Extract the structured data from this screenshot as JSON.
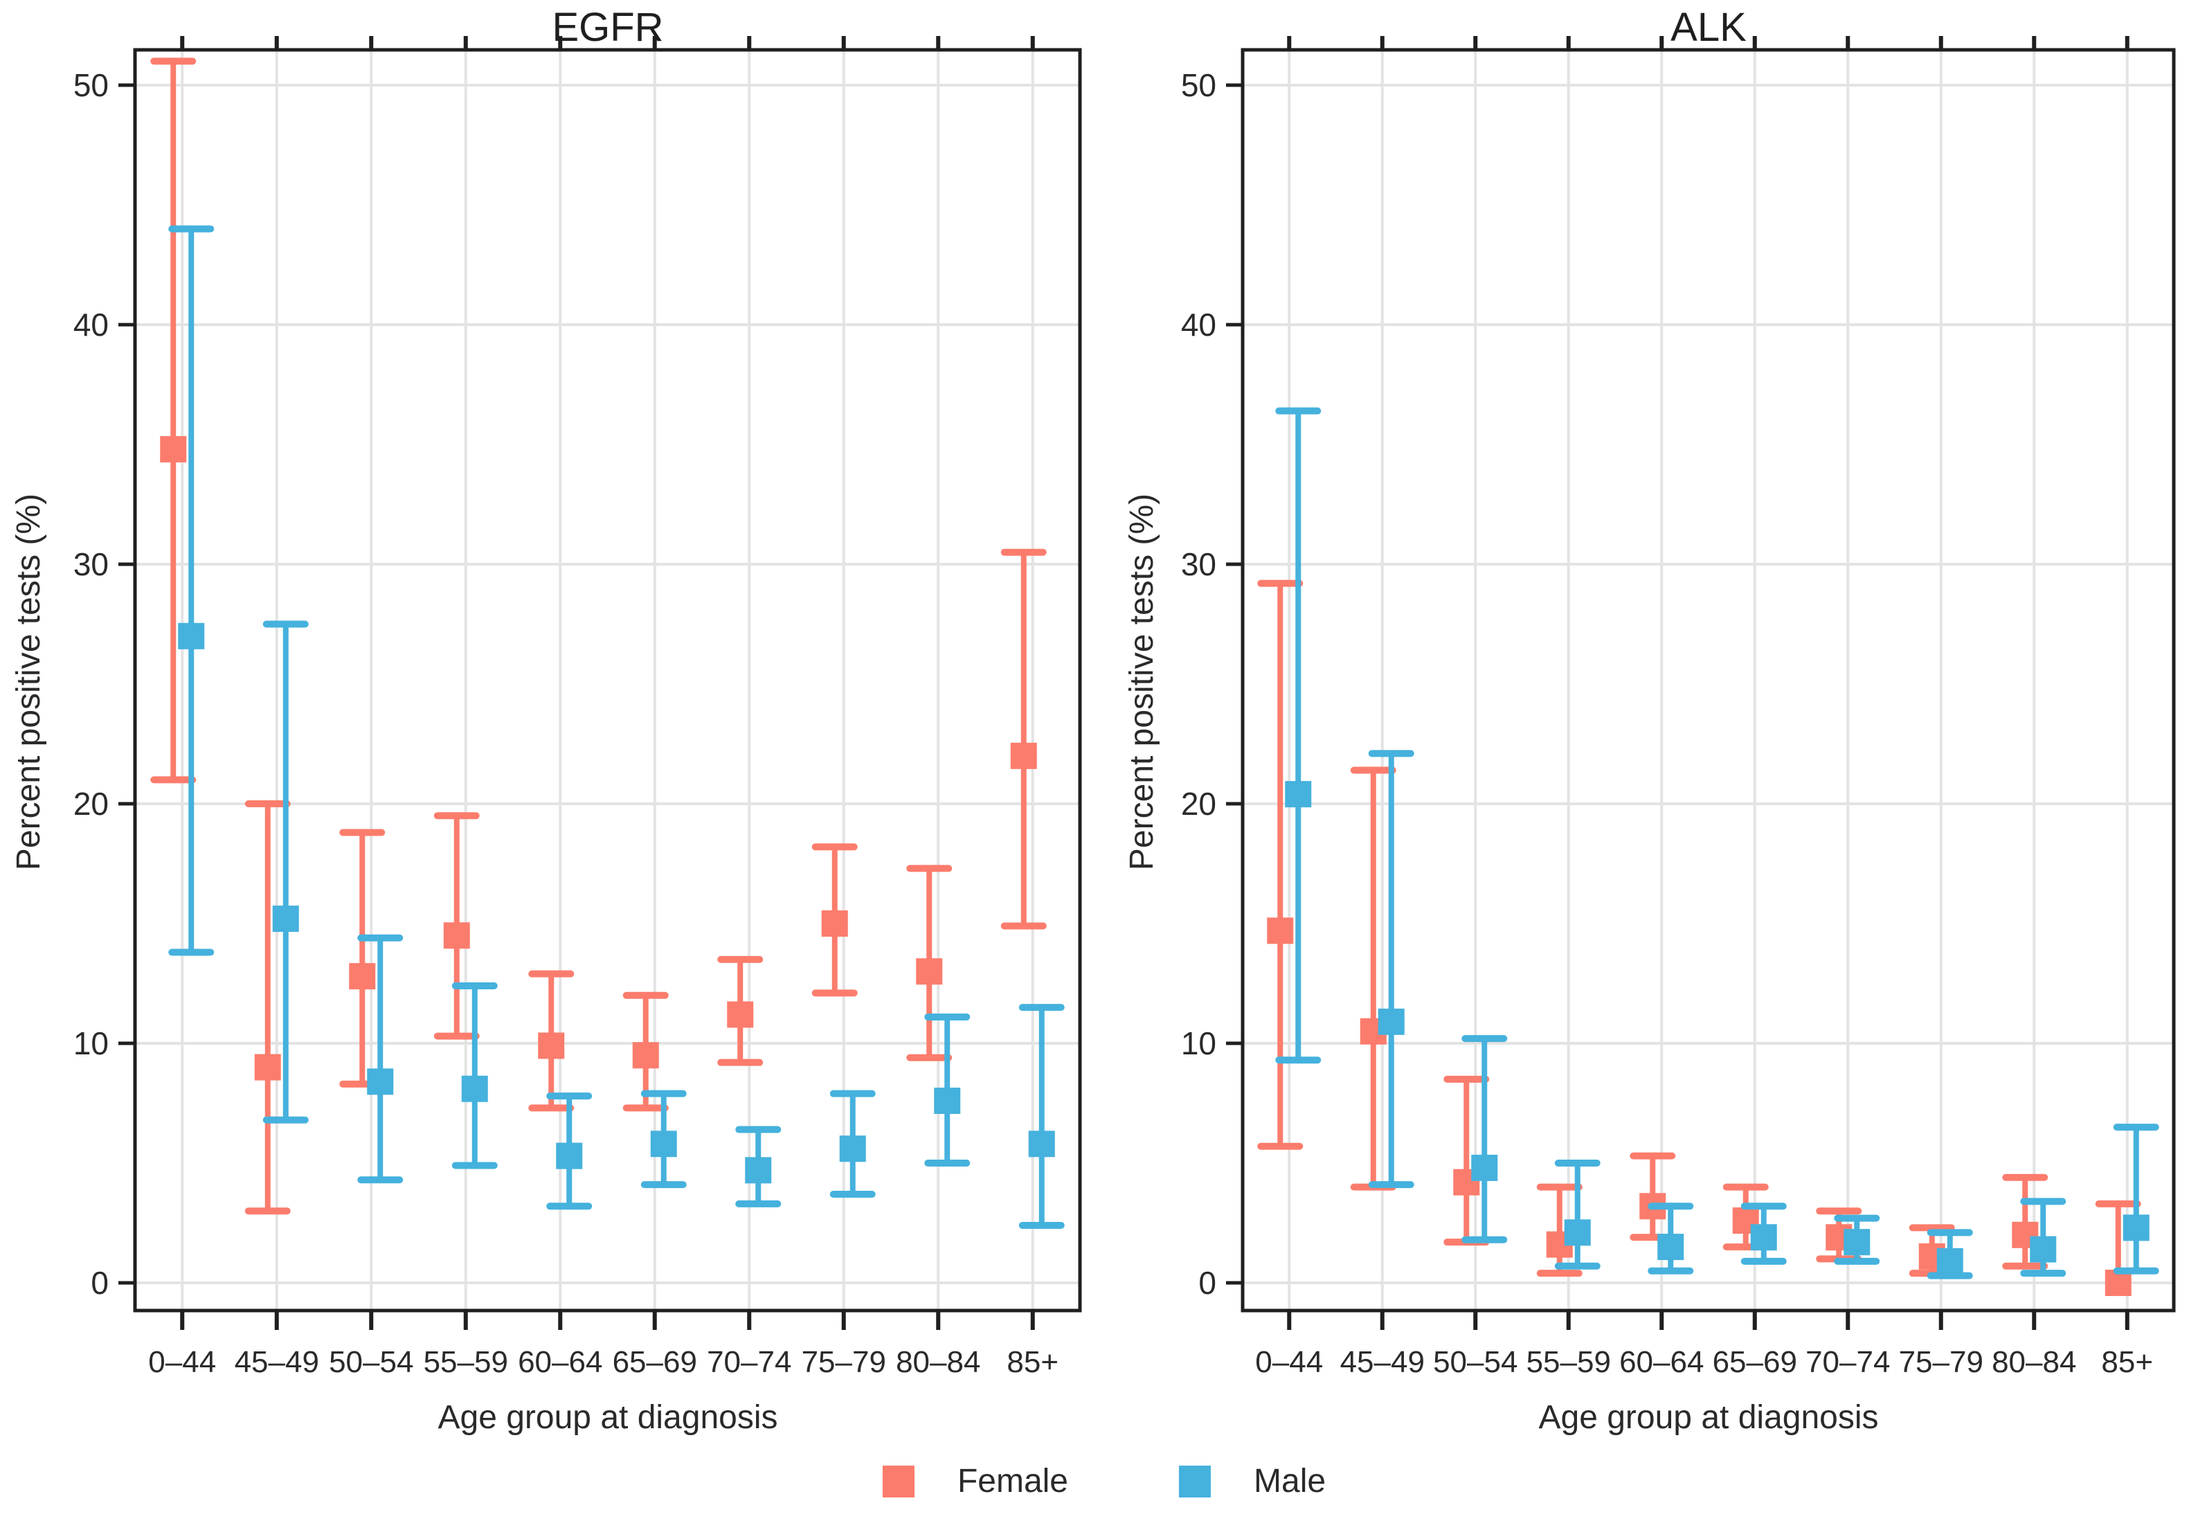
{
  "figure": {
    "background": "#ffffff",
    "text_color": "#2a2a2a",
    "grid_color": "#e3e3e3",
    "axis_color": "#1f1f1f"
  },
  "legend": {
    "items": [
      {
        "label": "Female",
        "color": "#FB7C6C"
      },
      {
        "label": "Male",
        "color": "#45B1DD"
      }
    ]
  },
  "chart_data": [
    {
      "type": "scatter",
      "subtype": "point-range with 95% CI error bars",
      "title": "EGFR",
      "xlabel": "Age group at diagnosis",
      "ylabel": "Percent positive tests (%)",
      "ylim": [
        0,
        52.6
      ],
      "yticks": [
        0,
        10,
        20,
        30,
        40,
        50
      ],
      "grid": true,
      "legend_position": "bottom",
      "categories": [
        "0–44",
        "45–49",
        "50–54",
        "55–59",
        "60–64",
        "65–69",
        "70–74",
        "75–79",
        "80–84",
        "85+"
      ],
      "series": [
        {
          "name": "Female",
          "color": "#FB7C6C",
          "est": [
            34.8,
            9.0,
            12.8,
            14.5,
            9.9,
            9.5,
            11.2,
            15.0,
            13.0,
            22.0
          ],
          "lo": [
            21.0,
            3.0,
            8.3,
            10.3,
            7.3,
            7.3,
            9.2,
            12.1,
            9.4,
            14.9
          ],
          "hi": [
            51.0,
            20.0,
            18.8,
            19.5,
            12.9,
            12.0,
            13.5,
            18.2,
            17.3,
            30.5
          ]
        },
        {
          "name": "Male",
          "color": "#45B1DD",
          "est": [
            27.0,
            15.2,
            8.4,
            8.1,
            5.3,
            5.8,
            4.7,
            5.6,
            7.6,
            5.8
          ],
          "lo": [
            13.8,
            6.8,
            4.3,
            4.9,
            3.2,
            4.1,
            3.3,
            3.7,
            5.0,
            2.4
          ],
          "hi": [
            44.0,
            27.5,
            14.4,
            12.4,
            7.8,
            7.9,
            6.4,
            7.9,
            11.1,
            11.5
          ]
        }
      ]
    },
    {
      "type": "scatter",
      "subtype": "point-range with 95% CI error bars",
      "title": "ALK",
      "xlabel": "Age group at diagnosis",
      "ylabel": "Percent positive tests (%)",
      "ylim": [
        0,
        52.6
      ],
      "yticks": [
        0,
        10,
        20,
        30,
        40,
        50
      ],
      "grid": true,
      "legend_position": "bottom",
      "categories": [
        "0–44",
        "45–49",
        "50–54",
        "55–59",
        "60–64",
        "65–69",
        "70–74",
        "75–79",
        "80–84",
        "85+"
      ],
      "series": [
        {
          "name": "Female",
          "color": "#FB7C6C",
          "est": [
            14.7,
            10.5,
            4.2,
            1.6,
            3.2,
            2.6,
            1.9,
            1.1,
            2.0,
            0.0
          ],
          "lo": [
            5.7,
            4.0,
            1.7,
            0.4,
            1.9,
            1.5,
            1.0,
            0.4,
            0.7,
            0.0
          ],
          "hi": [
            29.2,
            21.4,
            8.5,
            4.0,
            5.3,
            4.0,
            3.0,
            2.3,
            4.4,
            3.3
          ]
        },
        {
          "name": "Male",
          "color": "#45B1DD",
          "est": [
            20.4,
            10.9,
            4.8,
            2.1,
            1.5,
            1.9,
            1.7,
            0.9,
            1.4,
            2.3
          ],
          "lo": [
            9.3,
            4.1,
            1.8,
            0.7,
            0.5,
            0.9,
            0.9,
            0.3,
            0.4,
            0.5
          ],
          "hi": [
            36.4,
            22.1,
            10.2,
            5.0,
            3.2,
            3.2,
            2.7,
            2.1,
            3.4,
            6.5
          ]
        }
      ]
    }
  ]
}
